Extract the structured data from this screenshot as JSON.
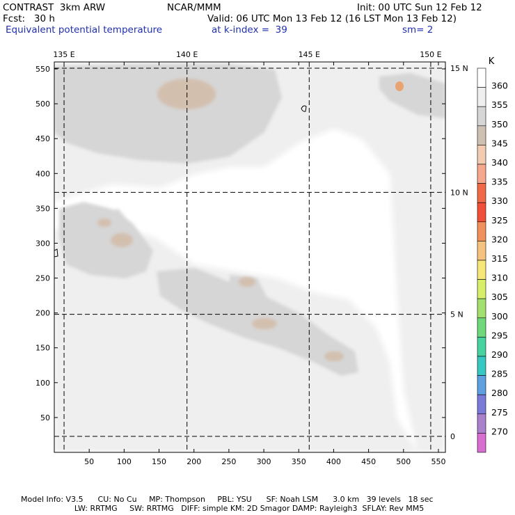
{
  "header": {
    "line1_left": "CONTRAST  3km ARW",
    "line1_center": "NCAR/MMM",
    "line1_right": "Init: 00 UTC Sun 12 Feb 12",
    "line2_left": "Fcst:   30 h",
    "line2_right": "Valid: 06 UTC Mon 13 Feb 12 (16 LST Mon 13 Feb 12)",
    "line3_field": "Equivalent potential temperature",
    "line3_level": "at k-index =  39",
    "line3_smooth": "sm= 2"
  },
  "footer": {
    "line1": "Model Info: V3.5      CU: No Cu     MP: Thompson     PBL: YSU      SF: Noah LSM      3.0 km   39 levels   18 sec",
    "line2": "                      LW: RRTMG     SW: RRTMG   DIFF: simple KM: 2D Smagor DAMP: Rayleigh3  SFLAY: Rev MM5"
  },
  "colors": {
    "shade_light": "#efefef",
    "shade_mid": "#d6d6d6",
    "shade_tan": "#d3bfae",
    "shade_orange": "#e9a372"
  },
  "chart_data": {
    "type": "heatmap",
    "field": "Equivalent potential temperature",
    "units": "K",
    "x_ticks": [
      50,
      100,
      150,
      200,
      250,
      300,
      350,
      400,
      450,
      500,
      550
    ],
    "y_ticks": [
      50,
      100,
      150,
      200,
      250,
      300,
      350,
      400,
      450,
      500,
      550
    ],
    "xlim": [
      0,
      560
    ],
    "ylim": [
      0,
      560
    ],
    "lon_labels": [
      "135 E",
      "140 E",
      "145 E",
      "150 E"
    ],
    "lat_labels": [
      "15 N",
      "10 N",
      "5 N",
      "0"
    ],
    "lon_grid_x": [
      14,
      190,
      365,
      539
    ],
    "lat_grid_y": [
      551,
      373,
      198,
      23
    ],
    "colorbar": {
      "label": "K",
      "levels": [
        360,
        355,
        350,
        345,
        340,
        335,
        330,
        325,
        320,
        315,
        310,
        305,
        300,
        295,
        290,
        285,
        280,
        275,
        270
      ],
      "colors": [
        "#ffffff",
        "#efefef",
        "#d6d6d6",
        "#cfc0b4",
        "#f3cbb3",
        "#f5a88c",
        "#f06a4a",
        "#f04f3a",
        "#f0905a",
        "#f6c280",
        "#f6e77a",
        "#d6ee6a",
        "#a2e070",
        "#6ed87a",
        "#48d2a0",
        "#38c8c4",
        "#5ea0e0",
        "#7a7ad8",
        "#aa82cc",
        "#d86ed0"
      ]
    },
    "grid": true,
    "legend": "right"
  }
}
